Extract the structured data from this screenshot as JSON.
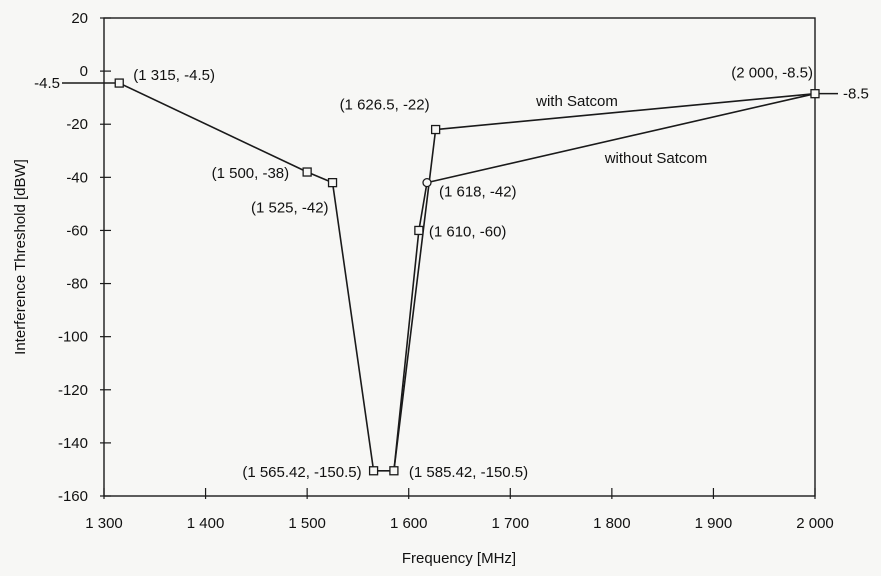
{
  "chart_data": {
    "type": "line",
    "xlabel": "Frequency [MHz]",
    "ylabel": "Interference Threshold [dBW]",
    "xlim": [
      1300,
      2000
    ],
    "ylim": [
      -160,
      20
    ],
    "x_ticks": [
      1300,
      1400,
      1500,
      1600,
      1700,
      1800,
      1900,
      2000
    ],
    "x_tick_labels": [
      "1 300",
      "1 400",
      "1 500",
      "1 600",
      "1 700",
      "1 800",
      "1 900",
      "2 000"
    ],
    "y_ticks": [
      20,
      0,
      -20,
      -40,
      -60,
      -80,
      -100,
      -120,
      -140,
      -160
    ],
    "y_tick_labels": [
      "20",
      "0",
      "-20",
      "-40",
      "-60",
      "-80",
      "-100",
      "-120",
      "-140",
      "-160"
    ],
    "series": [
      {
        "name": "with Satcom",
        "x": [
          1315,
          1500,
          1525,
          1565.42,
          1585.42,
          1626.5,
          2000
        ],
        "y": [
          -4.5,
          -38,
          -42,
          -150.5,
          -150.5,
          -22,
          -8.5
        ]
      },
      {
        "name": "without Satcom",
        "x": [
          1585.42,
          1610,
          1618,
          2000
        ],
        "y": [
          -150.5,
          -60,
          -42,
          -8.5
        ]
      }
    ],
    "markers": [
      {
        "x": 1315,
        "y": -4.5,
        "label": "(1 315, -4.5)"
      },
      {
        "x": 1500,
        "y": -38,
        "label": "(1 500, -38)"
      },
      {
        "x": 1525,
        "y": -42,
        "label": "(1 525, -42)"
      },
      {
        "x": 1565.42,
        "y": -150.5,
        "label": "(1 565.42, -150.5)"
      },
      {
        "x": 1585.42,
        "y": -150.5,
        "label": "(1 585.42, -150.5)"
      },
      {
        "x": 1626.5,
        "y": -22,
        "label": "(1 626.5, -22)"
      },
      {
        "x": 1610,
        "y": -60,
        "label": "(1 610, -60)"
      },
      {
        "x": 1618,
        "y": -42,
        "label": "(1 618, -42)"
      },
      {
        "x": 2000,
        "y": -8.5,
        "label": "(2 000, -8.5)"
      }
    ],
    "edge_labels": {
      "left": "-4.5",
      "right": "-8.5"
    },
    "grid": false,
    "colors": {
      "line": "#1a1a1a",
      "marker": "#1a1a1a",
      "background": "#f7f7f5"
    }
  }
}
